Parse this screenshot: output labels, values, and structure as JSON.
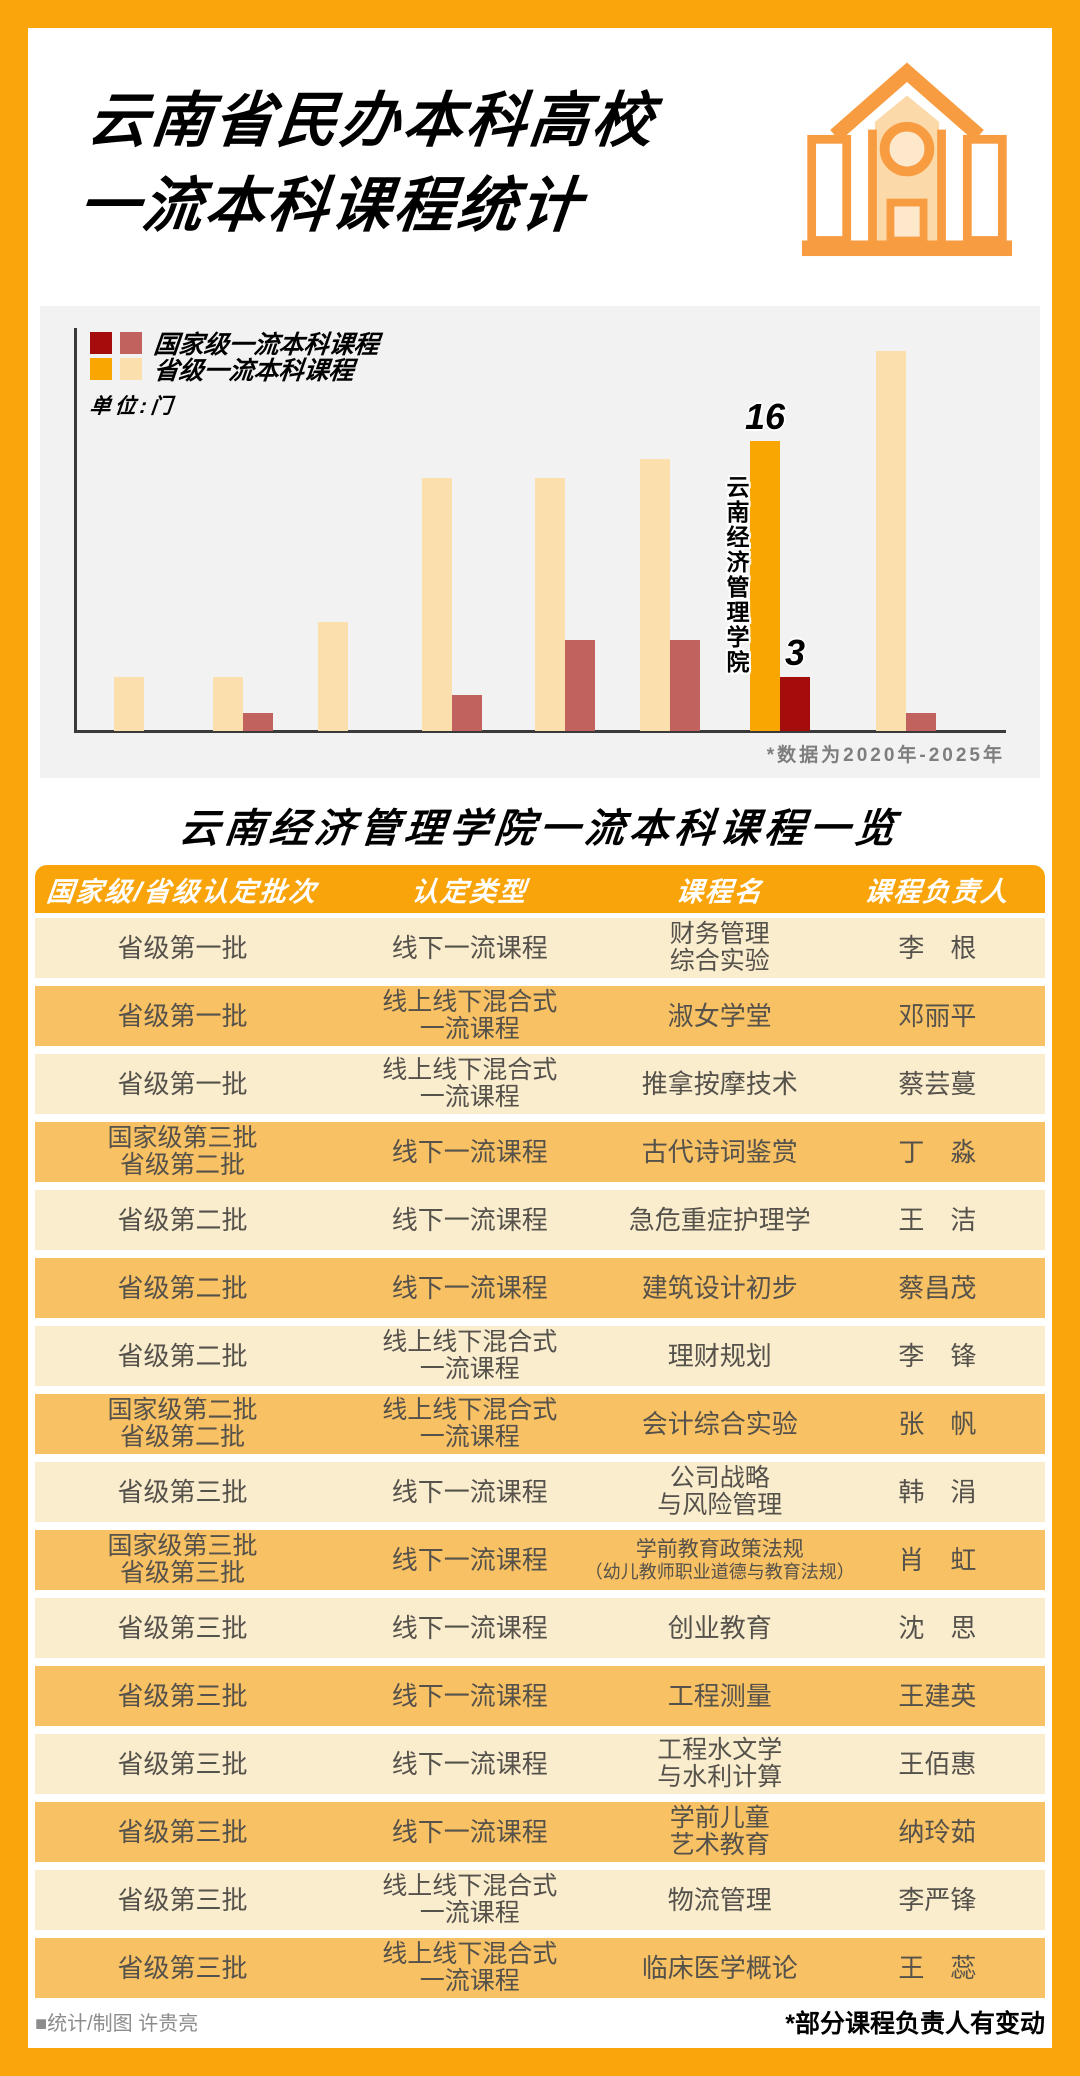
{
  "header": {
    "title_lines": [
      "云南省民办本科高校",
      "一流本科课程统计"
    ],
    "icon": "school-building-icon"
  },
  "chart_data": {
    "type": "bar",
    "unit_label": "单位:门",
    "note": "*数据为2020年-2025年",
    "legend": [
      {
        "label": "国家级一流本科课程",
        "colors": [
          "#A50D0D",
          "#C2625F"
        ]
      },
      {
        "label": "省级一流本科课程",
        "colors": [
          "#F9A602",
          "#FBDFAC"
        ]
      }
    ],
    "series_names": {
      "province": "省级一流本科课程",
      "national": "国家级一流本科课程"
    },
    "groups": [
      {
        "province": 3,
        "national": 0
      },
      {
        "province": 3,
        "national": 1
      },
      {
        "province": 6,
        "national": 0
      },
      {
        "province": 14,
        "national": 2
      },
      {
        "province": 14,
        "national": 5
      },
      {
        "province": 15,
        "national": 5
      },
      {
        "province": 16,
        "national": 3,
        "highlighted": true,
        "label": "云南经济管理学院"
      },
      {
        "province": 21,
        "national": 1
      }
    ],
    "labeled_values": {
      "school": "云南经济管理学院",
      "province": 16,
      "national": 3
    },
    "grid": false,
    "legend_position": "top-left"
  },
  "table": {
    "title": "云南经济管理学院一流本科课程一览",
    "columns": [
      "国家级/省级认定批次",
      "认定类型",
      "课程名",
      "课程负责人"
    ],
    "rows": [
      {
        "batch": [
          "省级第一批"
        ],
        "type": [
          "线下一流课程"
        ],
        "course": [
          "财务管理",
          "综合实验"
        ],
        "person": "李　根"
      },
      {
        "batch": [
          "省级第一批"
        ],
        "type": [
          "线上线下混合式",
          "一流课程"
        ],
        "course": [
          "淑女学堂"
        ],
        "person": "邓丽平"
      },
      {
        "batch": [
          "省级第一批"
        ],
        "type": [
          "线上线下混合式",
          "一流课程"
        ],
        "course": [
          "推拿按摩技术"
        ],
        "person": "蔡芸蔓"
      },
      {
        "batch": [
          "国家级第三批",
          "省级第二批"
        ],
        "type": [
          "线下一流课程"
        ],
        "course": [
          "古代诗词鉴赏"
        ],
        "person": "丁　淼"
      },
      {
        "batch": [
          "省级第二批"
        ],
        "type": [
          "线下一流课程"
        ],
        "course": [
          "急危重症护理学"
        ],
        "person": "王　洁"
      },
      {
        "batch": [
          "省级第二批"
        ],
        "type": [
          "线下一流课程"
        ],
        "course": [
          "建筑设计初步"
        ],
        "person": "蔡昌茂"
      },
      {
        "batch": [
          "省级第二批"
        ],
        "type": [
          "线上线下混合式",
          "一流课程"
        ],
        "course": [
          "理财规划"
        ],
        "person": "李　锋"
      },
      {
        "batch": [
          "国家级第二批",
          "省级第二批"
        ],
        "type": [
          "线上线下混合式",
          "一流课程"
        ],
        "course": [
          "会计综合实验"
        ],
        "person": "张　帆"
      },
      {
        "batch": [
          "省级第三批"
        ],
        "type": [
          "线下一流课程"
        ],
        "course": [
          "公司战略",
          "与风险管理"
        ],
        "person": "韩　涓"
      },
      {
        "batch": [
          "国家级第三批",
          "省级第三批"
        ],
        "type": [
          "线下一流课程"
        ],
        "course": [
          "学前教育政策法规",
          "（幼儿教师职业道德与教育法规）"
        ],
        "person": "肖　虹"
      },
      {
        "batch": [
          "省级第三批"
        ],
        "type": [
          "线下一流课程"
        ],
        "course": [
          "创业教育"
        ],
        "person": "沈　思"
      },
      {
        "batch": [
          "省级第三批"
        ],
        "type": [
          "线下一流课程"
        ],
        "course": [
          "工程测量"
        ],
        "person": "王建英"
      },
      {
        "batch": [
          "省级第三批"
        ],
        "type": [
          "线下一流课程"
        ],
        "course": [
          "工程水文学",
          "与水利计算"
        ],
        "person": "王佰惠"
      },
      {
        "batch": [
          "省级第三批"
        ],
        "type": [
          "线下一流课程"
        ],
        "course": [
          "学前儿童",
          "艺术教育"
        ],
        "person": "纳玲茹"
      },
      {
        "batch": [
          "省级第三批"
        ],
        "type": [
          "线上线下混合式",
          "一流课程"
        ],
        "course": [
          "物流管理"
        ],
        "person": "李严锋"
      },
      {
        "batch": [
          "省级第三批"
        ],
        "type": [
          "线上线下混合式",
          "一流课程"
        ],
        "course": [
          "临床医学概论"
        ],
        "person": "王　蕊"
      }
    ]
  },
  "footer": {
    "credit": "■统计/制图 许贵亮",
    "note": "*部分课程负责人有变动"
  },
  "colors": {
    "frame": "#FBA50D",
    "chart_bg": "#F2F2F2",
    "axis": "#3A3A3A",
    "bar_province": "#FBDFAC",
    "bar_province_highlight": "#F9A602",
    "bar_national": "#C2625F",
    "bar_national_highlight": "#A50D0D",
    "table_header_bg": "#F9A40A",
    "row_cream": "#FAEDCE",
    "row_orange": "#F8C163",
    "row_text": "#55514B",
    "note_gray": "#7E7E7E",
    "icon_orange": "#F89C42",
    "icon_fill": "#FCD9A8"
  }
}
